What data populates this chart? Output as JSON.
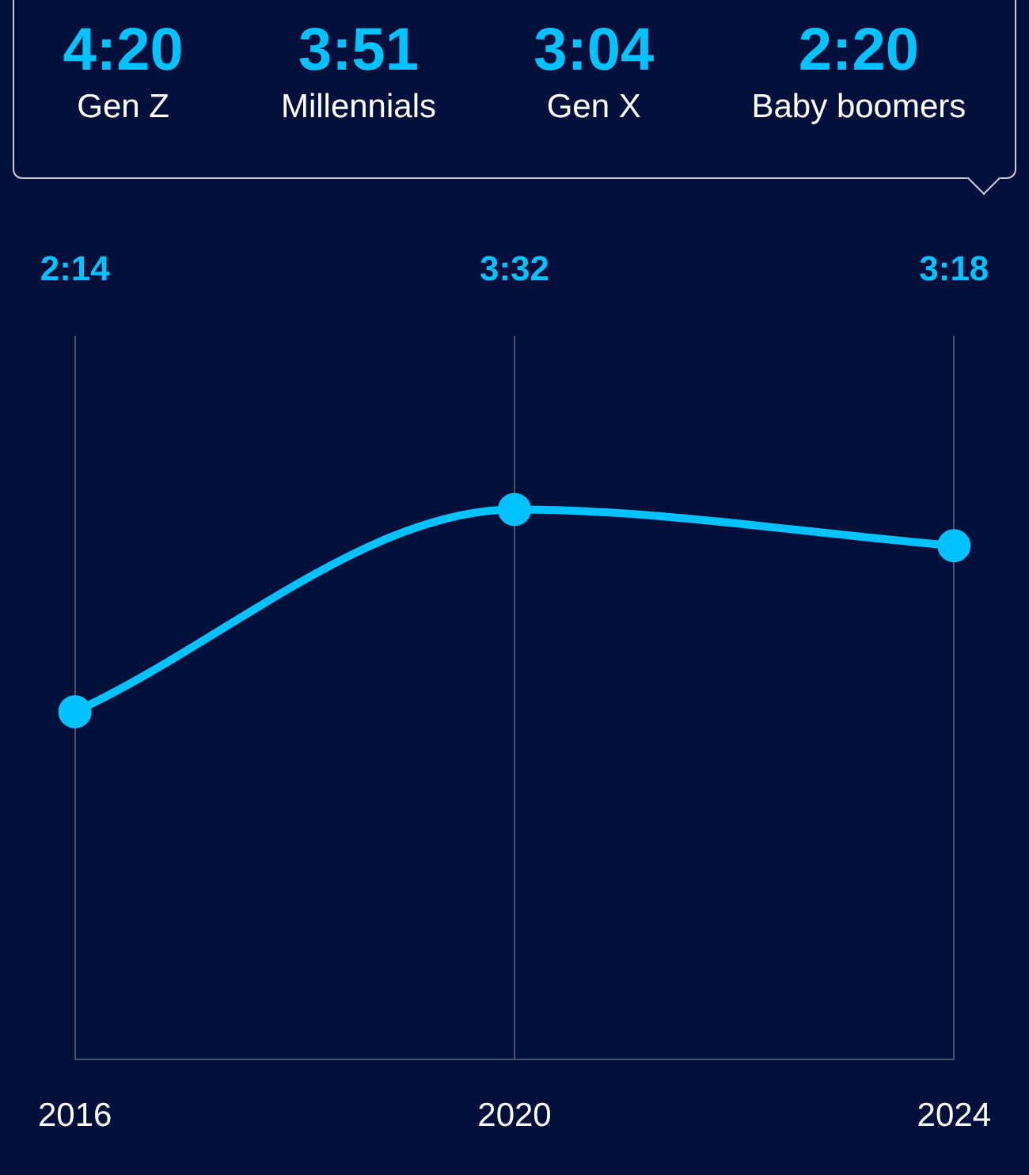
{
  "chart_data": [
    {
      "type": "other",
      "annotations": [
        "4:20",
        "Gen Z",
        "3:51",
        "Millennials",
        "3:04",
        "Gen X",
        "2:20",
        "Baby boomers"
      ]
    },
    {
      "type": "line",
      "categories": [
        "2016",
        "2020",
        "2024"
      ],
      "values": [
        2.233,
        3.533,
        3.3
      ],
      "value_labels": [
        "2:14",
        "3:32",
        "3:18"
      ],
      "color": "#00c2ff",
      "ylim": [
        0,
        4.65
      ],
      "grid": "x",
      "tick_labels": "x",
      "marker": "circle"
    }
  ]
}
